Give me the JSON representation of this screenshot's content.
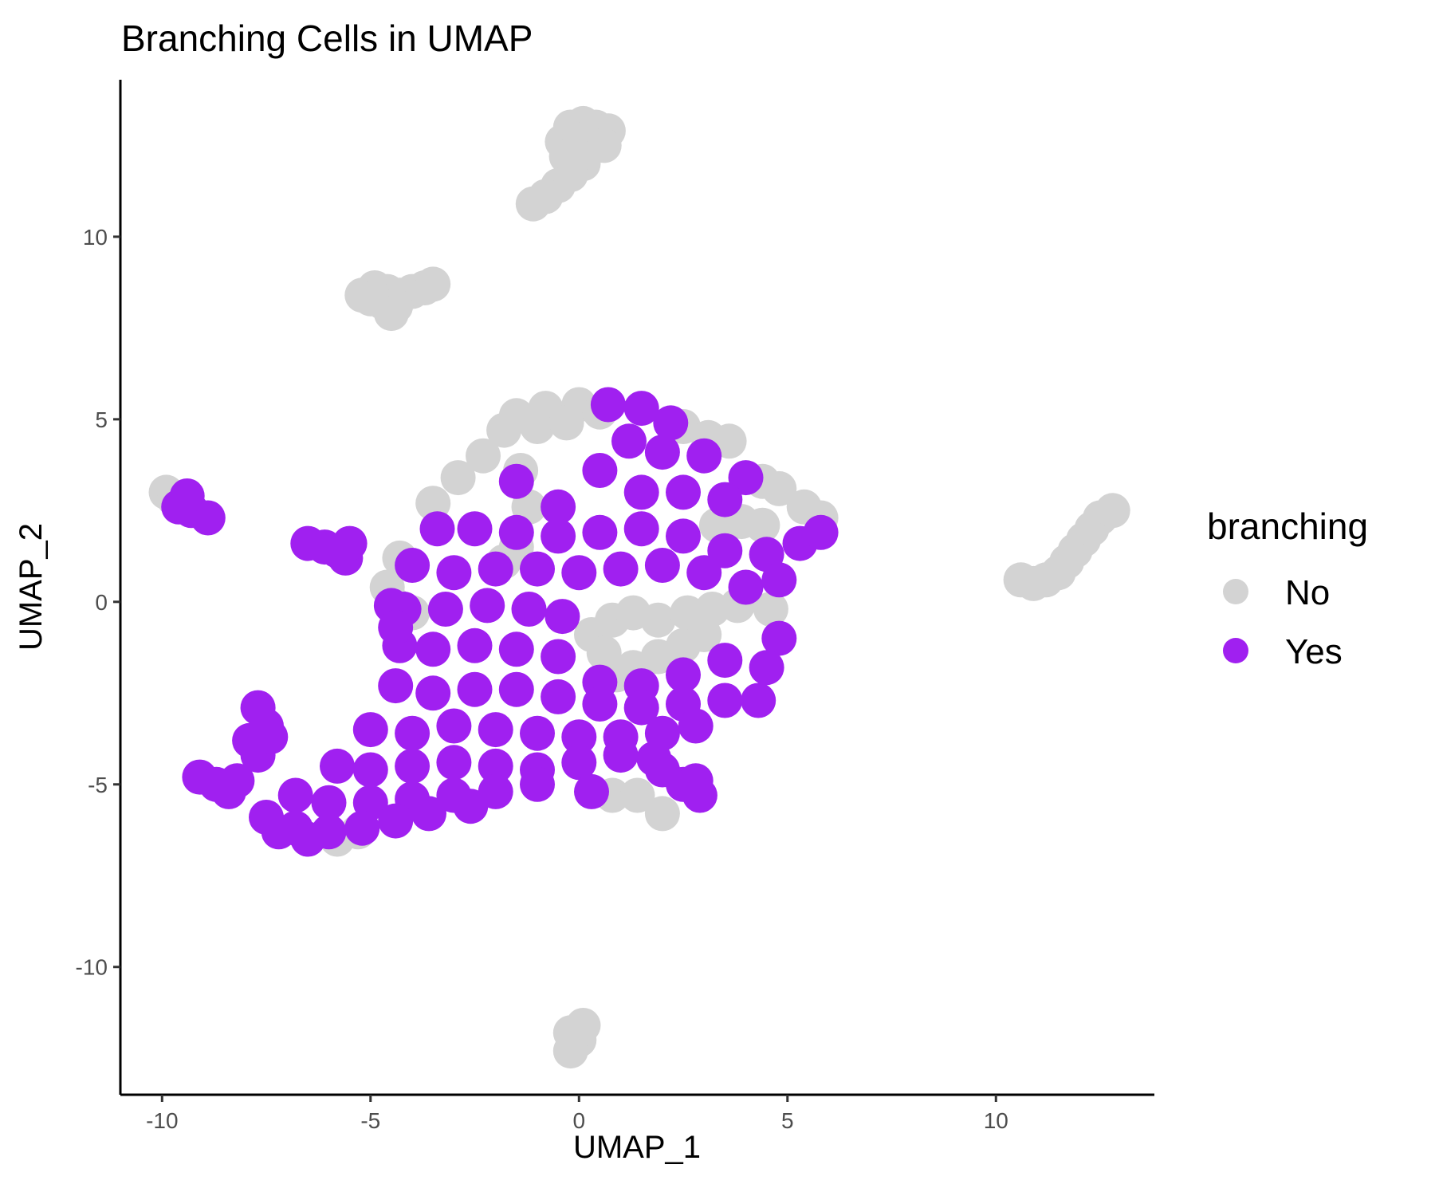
{
  "chart_data": {
    "type": "scatter",
    "title": "Branching Cells in UMAP",
    "xlabel": "UMAP_1",
    "ylabel": "UMAP_2",
    "xlim": [
      -11,
      13.8
    ],
    "ylim": [
      -13.5,
      14.3
    ],
    "x_ticks": [
      -10,
      -5,
      0,
      5,
      10
    ],
    "y_ticks": [
      -10,
      -5,
      0,
      5,
      10
    ],
    "grid": false,
    "legend": {
      "title": "branching",
      "placement": "right",
      "entries": [
        {
          "label": "No",
          "color": "#d3d3d3"
        },
        {
          "label": "Yes",
          "color": "#a020f0"
        }
      ]
    },
    "series": [
      {
        "name": "No",
        "color": "#d3d3d3",
        "points": [
          [
            -0.2,
            13.0
          ],
          [
            0.1,
            13.1
          ],
          [
            0.4,
            13.0
          ],
          [
            0.7,
            12.9
          ],
          [
            -0.4,
            12.6
          ],
          [
            0.0,
            12.5
          ],
          [
            0.3,
            12.6
          ],
          [
            0.6,
            12.5
          ],
          [
            -0.3,
            12.2
          ],
          [
            0.1,
            12.0
          ],
          [
            -0.2,
            11.7
          ],
          [
            -0.5,
            11.4
          ],
          [
            -0.8,
            11.1
          ],
          [
            -1.1,
            10.9
          ],
          [
            -5.2,
            8.4
          ],
          [
            -4.9,
            8.6
          ],
          [
            -4.6,
            8.5
          ],
          [
            -4.3,
            8.4
          ],
          [
            -4.0,
            8.5
          ],
          [
            -3.7,
            8.6
          ],
          [
            -3.5,
            8.7
          ],
          [
            -4.7,
            8.2
          ],
          [
            -4.4,
            8.1
          ],
          [
            -4.5,
            7.9
          ],
          [
            -5.0,
            8.3
          ],
          [
            -9.9,
            3.0
          ],
          [
            -9.7,
            2.8
          ],
          [
            10.6,
            0.6
          ],
          [
            10.9,
            0.5
          ],
          [
            11.2,
            0.6
          ],
          [
            11.5,
            0.8
          ],
          [
            11.7,
            1.1
          ],
          [
            11.9,
            1.4
          ],
          [
            12.1,
            1.7
          ],
          [
            12.3,
            2.0
          ],
          [
            12.5,
            2.3
          ],
          [
            12.8,
            2.5
          ],
          [
            -0.2,
            -11.8
          ],
          [
            0.0,
            -12.0
          ],
          [
            -0.2,
            -12.3
          ],
          [
            0.1,
            -11.6
          ],
          [
            -1.5,
            5.1
          ],
          [
            -0.8,
            5.3
          ],
          [
            0.0,
            5.4
          ],
          [
            0.5,
            5.2
          ],
          [
            -1.8,
            4.7
          ],
          [
            -1.0,
            4.8
          ],
          [
            -0.3,
            4.9
          ],
          [
            -2.3,
            4.0
          ],
          [
            -2.9,
            3.4
          ],
          [
            -3.5,
            2.7
          ],
          [
            -1.4,
            3.6
          ],
          [
            -1.2,
            2.6
          ],
          [
            -1.5,
            1.5
          ],
          [
            -1.8,
            1.1
          ],
          [
            -4.3,
            1.2
          ],
          [
            -4.6,
            0.4
          ],
          [
            -4.4,
            -0.1
          ],
          [
            -4.0,
            -0.3
          ],
          [
            2.5,
            4.8
          ],
          [
            3.1,
            4.5
          ],
          [
            3.6,
            4.4
          ],
          [
            4.4,
            3.3
          ],
          [
            4.8,
            3.1
          ],
          [
            5.4,
            2.6
          ],
          [
            5.8,
            2.3
          ],
          [
            3.3,
            2.1
          ],
          [
            3.9,
            2.2
          ],
          [
            4.4,
            2.1
          ],
          [
            0.3,
            -0.9
          ],
          [
            0.8,
            -0.5
          ],
          [
            1.3,
            -0.3
          ],
          [
            1.9,
            -0.5
          ],
          [
            2.6,
            -0.3
          ],
          [
            3.2,
            -0.2
          ],
          [
            3.8,
            -0.1
          ],
          [
            4.6,
            -0.2
          ],
          [
            0.6,
            -1.4
          ],
          [
            1.3,
            -1.8
          ],
          [
            1.9,
            -1.5
          ],
          [
            2.5,
            -1.2
          ],
          [
            3.0,
            -0.9
          ],
          [
            0.9,
            -2.0
          ],
          [
            0.8,
            -5.3
          ],
          [
            1.4,
            -5.3
          ],
          [
            2.0,
            -5.8
          ],
          [
            -5.8,
            -6.5
          ],
          [
            -5.3,
            -6.3
          ]
        ]
      },
      {
        "name": "Yes",
        "color": "#a020f0",
        "points": [
          [
            0.7,
            5.4
          ],
          [
            1.5,
            5.3
          ],
          [
            2.2,
            4.9
          ],
          [
            1.2,
            4.4
          ],
          [
            2.0,
            4.1
          ],
          [
            3.0,
            4.0
          ],
          [
            4.0,
            3.4
          ],
          [
            0.5,
            3.6
          ],
          [
            1.5,
            3.0
          ],
          [
            2.5,
            3.0
          ],
          [
            3.5,
            2.8
          ],
          [
            -1.5,
            3.3
          ],
          [
            -0.5,
            2.6
          ],
          [
            -3.4,
            2.0
          ],
          [
            -2.5,
            2.0
          ],
          [
            -1.5,
            1.9
          ],
          [
            -0.5,
            1.8
          ],
          [
            0.5,
            1.9
          ],
          [
            1.5,
            2.0
          ],
          [
            2.5,
            1.8
          ],
          [
            3.5,
            1.4
          ],
          [
            4.5,
            1.3
          ],
          [
            5.3,
            1.6
          ],
          [
            5.8,
            1.9
          ],
          [
            -4.0,
            1.0
          ],
          [
            -3.0,
            0.8
          ],
          [
            -2.0,
            0.9
          ],
          [
            -1.0,
            0.9
          ],
          [
            0.0,
            0.8
          ],
          [
            1.0,
            0.9
          ],
          [
            2.0,
            1.0
          ],
          [
            3.0,
            0.8
          ],
          [
            4.0,
            0.4
          ],
          [
            4.8,
            0.6
          ],
          [
            -4.2,
            -0.2
          ],
          [
            -3.2,
            -0.2
          ],
          [
            -2.2,
            -0.1
          ],
          [
            -1.2,
            -0.2
          ],
          [
            -0.4,
            -0.4
          ],
          [
            4.8,
            -1.0
          ],
          [
            -4.3,
            -1.2
          ],
          [
            -3.5,
            -1.3
          ],
          [
            -2.5,
            -1.2
          ],
          [
            -1.5,
            -1.3
          ],
          [
            -0.5,
            -1.5
          ],
          [
            0.5,
            -2.2
          ],
          [
            1.5,
            -2.3
          ],
          [
            2.5,
            -2.0
          ],
          [
            3.5,
            -1.6
          ],
          [
            4.5,
            -1.8
          ],
          [
            -4.4,
            -2.3
          ],
          [
            -3.5,
            -2.5
          ],
          [
            -2.5,
            -2.4
          ],
          [
            -1.5,
            -2.4
          ],
          [
            -0.5,
            -2.6
          ],
          [
            0.5,
            -2.8
          ],
          [
            1.5,
            -2.9
          ],
          [
            2.5,
            -2.8
          ],
          [
            3.5,
            -2.7
          ],
          [
            4.3,
            -2.7
          ],
          [
            -5.0,
            -3.5
          ],
          [
            -4.0,
            -3.6
          ],
          [
            -3.0,
            -3.4
          ],
          [
            -2.0,
            -3.5
          ],
          [
            -1.0,
            -3.6
          ],
          [
            0.0,
            -3.7
          ],
          [
            1.0,
            -3.7
          ],
          [
            2.0,
            -3.6
          ],
          [
            2.8,
            -3.4
          ],
          [
            -5.8,
            -4.5
          ],
          [
            -5.0,
            -4.6
          ],
          [
            -4.0,
            -4.5
          ],
          [
            -3.0,
            -4.4
          ],
          [
            -2.0,
            -4.5
          ],
          [
            -1.0,
            -4.6
          ],
          [
            0.0,
            -4.4
          ],
          [
            1.0,
            -4.2
          ],
          [
            -6.8,
            -5.3
          ],
          [
            -6.0,
            -5.5
          ],
          [
            -5.0,
            -5.5
          ],
          [
            -4.0,
            -5.4
          ],
          [
            -3.0,
            -5.3
          ],
          [
            -2.0,
            -5.2
          ],
          [
            -1.0,
            -5.0
          ],
          [
            -7.5,
            -5.9
          ],
          [
            -6.8,
            -6.2
          ],
          [
            -6.0,
            -6.3
          ],
          [
            -5.2,
            -6.2
          ],
          [
            -4.4,
            -6.0
          ],
          [
            -3.6,
            -5.8
          ],
          [
            -2.6,
            -5.6
          ],
          [
            -6.5,
            -6.5
          ],
          [
            -7.2,
            -6.3
          ],
          [
            -7.7,
            -2.9
          ],
          [
            -7.5,
            -3.4
          ],
          [
            -7.9,
            -3.8
          ],
          [
            -7.7,
            -4.2
          ],
          [
            -7.4,
            -3.7
          ],
          [
            -8.4,
            -5.2
          ],
          [
            -9.1,
            -4.8
          ],
          [
            -8.7,
            -5.0
          ],
          [
            -8.2,
            -4.9
          ],
          [
            -9.6,
            2.6
          ],
          [
            -9.3,
            2.5
          ],
          [
            -8.9,
            2.3
          ],
          [
            -9.4,
            2.9
          ],
          [
            -6.5,
            1.6
          ],
          [
            -6.1,
            1.5
          ],
          [
            -5.8,
            1.4
          ],
          [
            -5.6,
            1.2
          ],
          [
            -5.5,
            1.6
          ],
          [
            0.3,
            -5.2
          ],
          [
            1.8,
            -4.3
          ],
          [
            2.0,
            -4.6
          ],
          [
            2.5,
            -5.0
          ],
          [
            2.8,
            -4.9
          ],
          [
            2.9,
            -5.3
          ],
          [
            -4.5,
            -0.1
          ],
          [
            -4.4,
            -0.7
          ]
        ]
      }
    ]
  }
}
